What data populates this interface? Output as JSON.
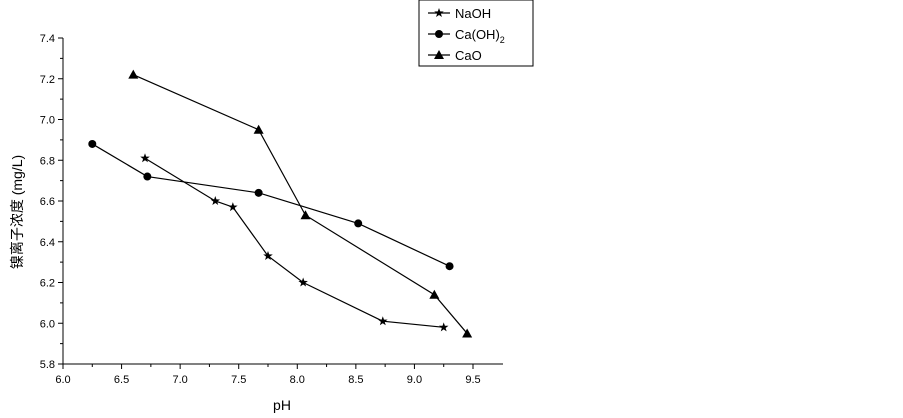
{
  "chart_data": {
    "type": "line",
    "title": "",
    "xlabel": "pH",
    "ylabel": "镍离子浓度 (mg/L)",
    "xlim": [
      6.0,
      9.5
    ],
    "ylim": [
      5.8,
      7.4
    ],
    "x_ticks": [
      6.0,
      6.5,
      7.0,
      7.5,
      8.0,
      8.5,
      9.0,
      9.5
    ],
    "x_tick_labels": [
      "6.0",
      "6.5",
      "7.0",
      "7.5",
      "8.0",
      "8.5",
      "9.0",
      "9.5"
    ],
    "y_ticks": [
      5.8,
      6.0,
      6.2,
      6.4,
      6.6,
      6.8,
      7.0,
      7.2,
      7.4
    ],
    "y_tick_labels": [
      "5.8",
      "6.0",
      "6.2",
      "6.4",
      "6.6",
      "6.8",
      "7.0",
      "7.2",
      "7.4"
    ],
    "grid": false,
    "legend_position": "top-right",
    "series": [
      {
        "name": "NaOH",
        "name_html": "NaOH",
        "marker": "star",
        "color": "#000000",
        "x": [
          6.7,
          7.3,
          7.45,
          7.75,
          8.05,
          8.73,
          9.25
        ],
        "y": [
          6.81,
          6.6,
          6.57,
          6.33,
          6.2,
          6.01,
          5.98
        ]
      },
      {
        "name": "Ca(OH)2",
        "name_main": "Ca(OH)",
        "name_sub": "2",
        "marker": "circle",
        "color": "#000000",
        "x": [
          6.25,
          6.72,
          7.67,
          8.52,
          9.3
        ],
        "y": [
          6.88,
          6.72,
          6.64,
          6.49,
          6.28
        ]
      },
      {
        "name": "CaO",
        "marker": "triangle",
        "color": "#000000",
        "x": [
          6.6,
          7.67,
          8.07,
          9.17,
          9.45
        ],
        "y": [
          7.22,
          6.95,
          6.53,
          6.14,
          5.95
        ]
      }
    ]
  }
}
